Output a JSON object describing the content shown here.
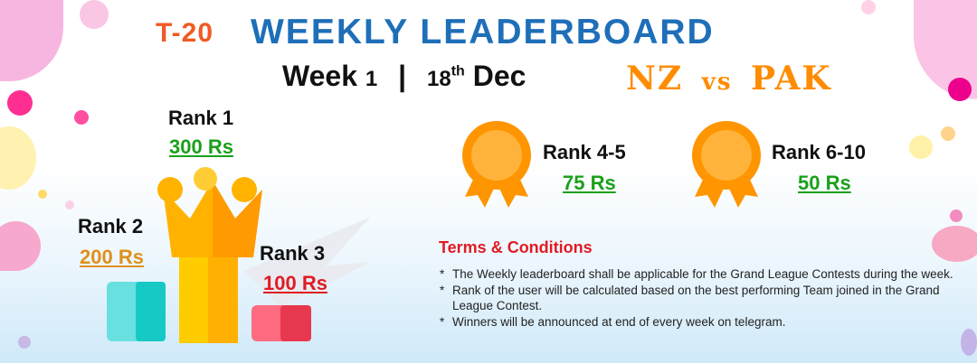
{
  "header": {
    "format": "T-20",
    "title": "WEEKLY LEADERBOARD",
    "week_word": "Week",
    "week_number": "1",
    "separator": "|",
    "date_day": "18",
    "date_suffix": "th",
    "date_month": "Dec",
    "match": {
      "team_a": "NZ",
      "vs": "vs",
      "team_b": "PAK"
    }
  },
  "podium": [
    {
      "rank": "Rank 1",
      "prize": "300 Rs"
    },
    {
      "rank": "Rank 2",
      "prize": "200 Rs"
    },
    {
      "rank": "Rank 3",
      "prize": "100 Rs"
    }
  ],
  "medals": [
    {
      "rank": "Rank 4-5",
      "prize": "75 Rs",
      "icon": "medal-icon"
    },
    {
      "rank": "Rank 6-10",
      "prize": "50 Rs",
      "icon": "medal-icon"
    }
  ],
  "terms": {
    "title": "Terms & Conditions",
    "items": [
      "The Weekly leaderboard shall be applicable for the Grand League Contests during the week.",
      "Rank of the user will be calculated based on the best performing Team joined in the Grand League Contest.",
      "Winners will be announced at end of every week on telegram."
    ]
  },
  "colors": {
    "title_blue": "#1e6fb8",
    "format_orange": "#f15a24",
    "match_orange": "#ff8c00",
    "prize_green": "#1aa01a",
    "prize_gold": "#e0901a",
    "prize_red": "#e01b24",
    "terms_red": "#e01b24"
  }
}
